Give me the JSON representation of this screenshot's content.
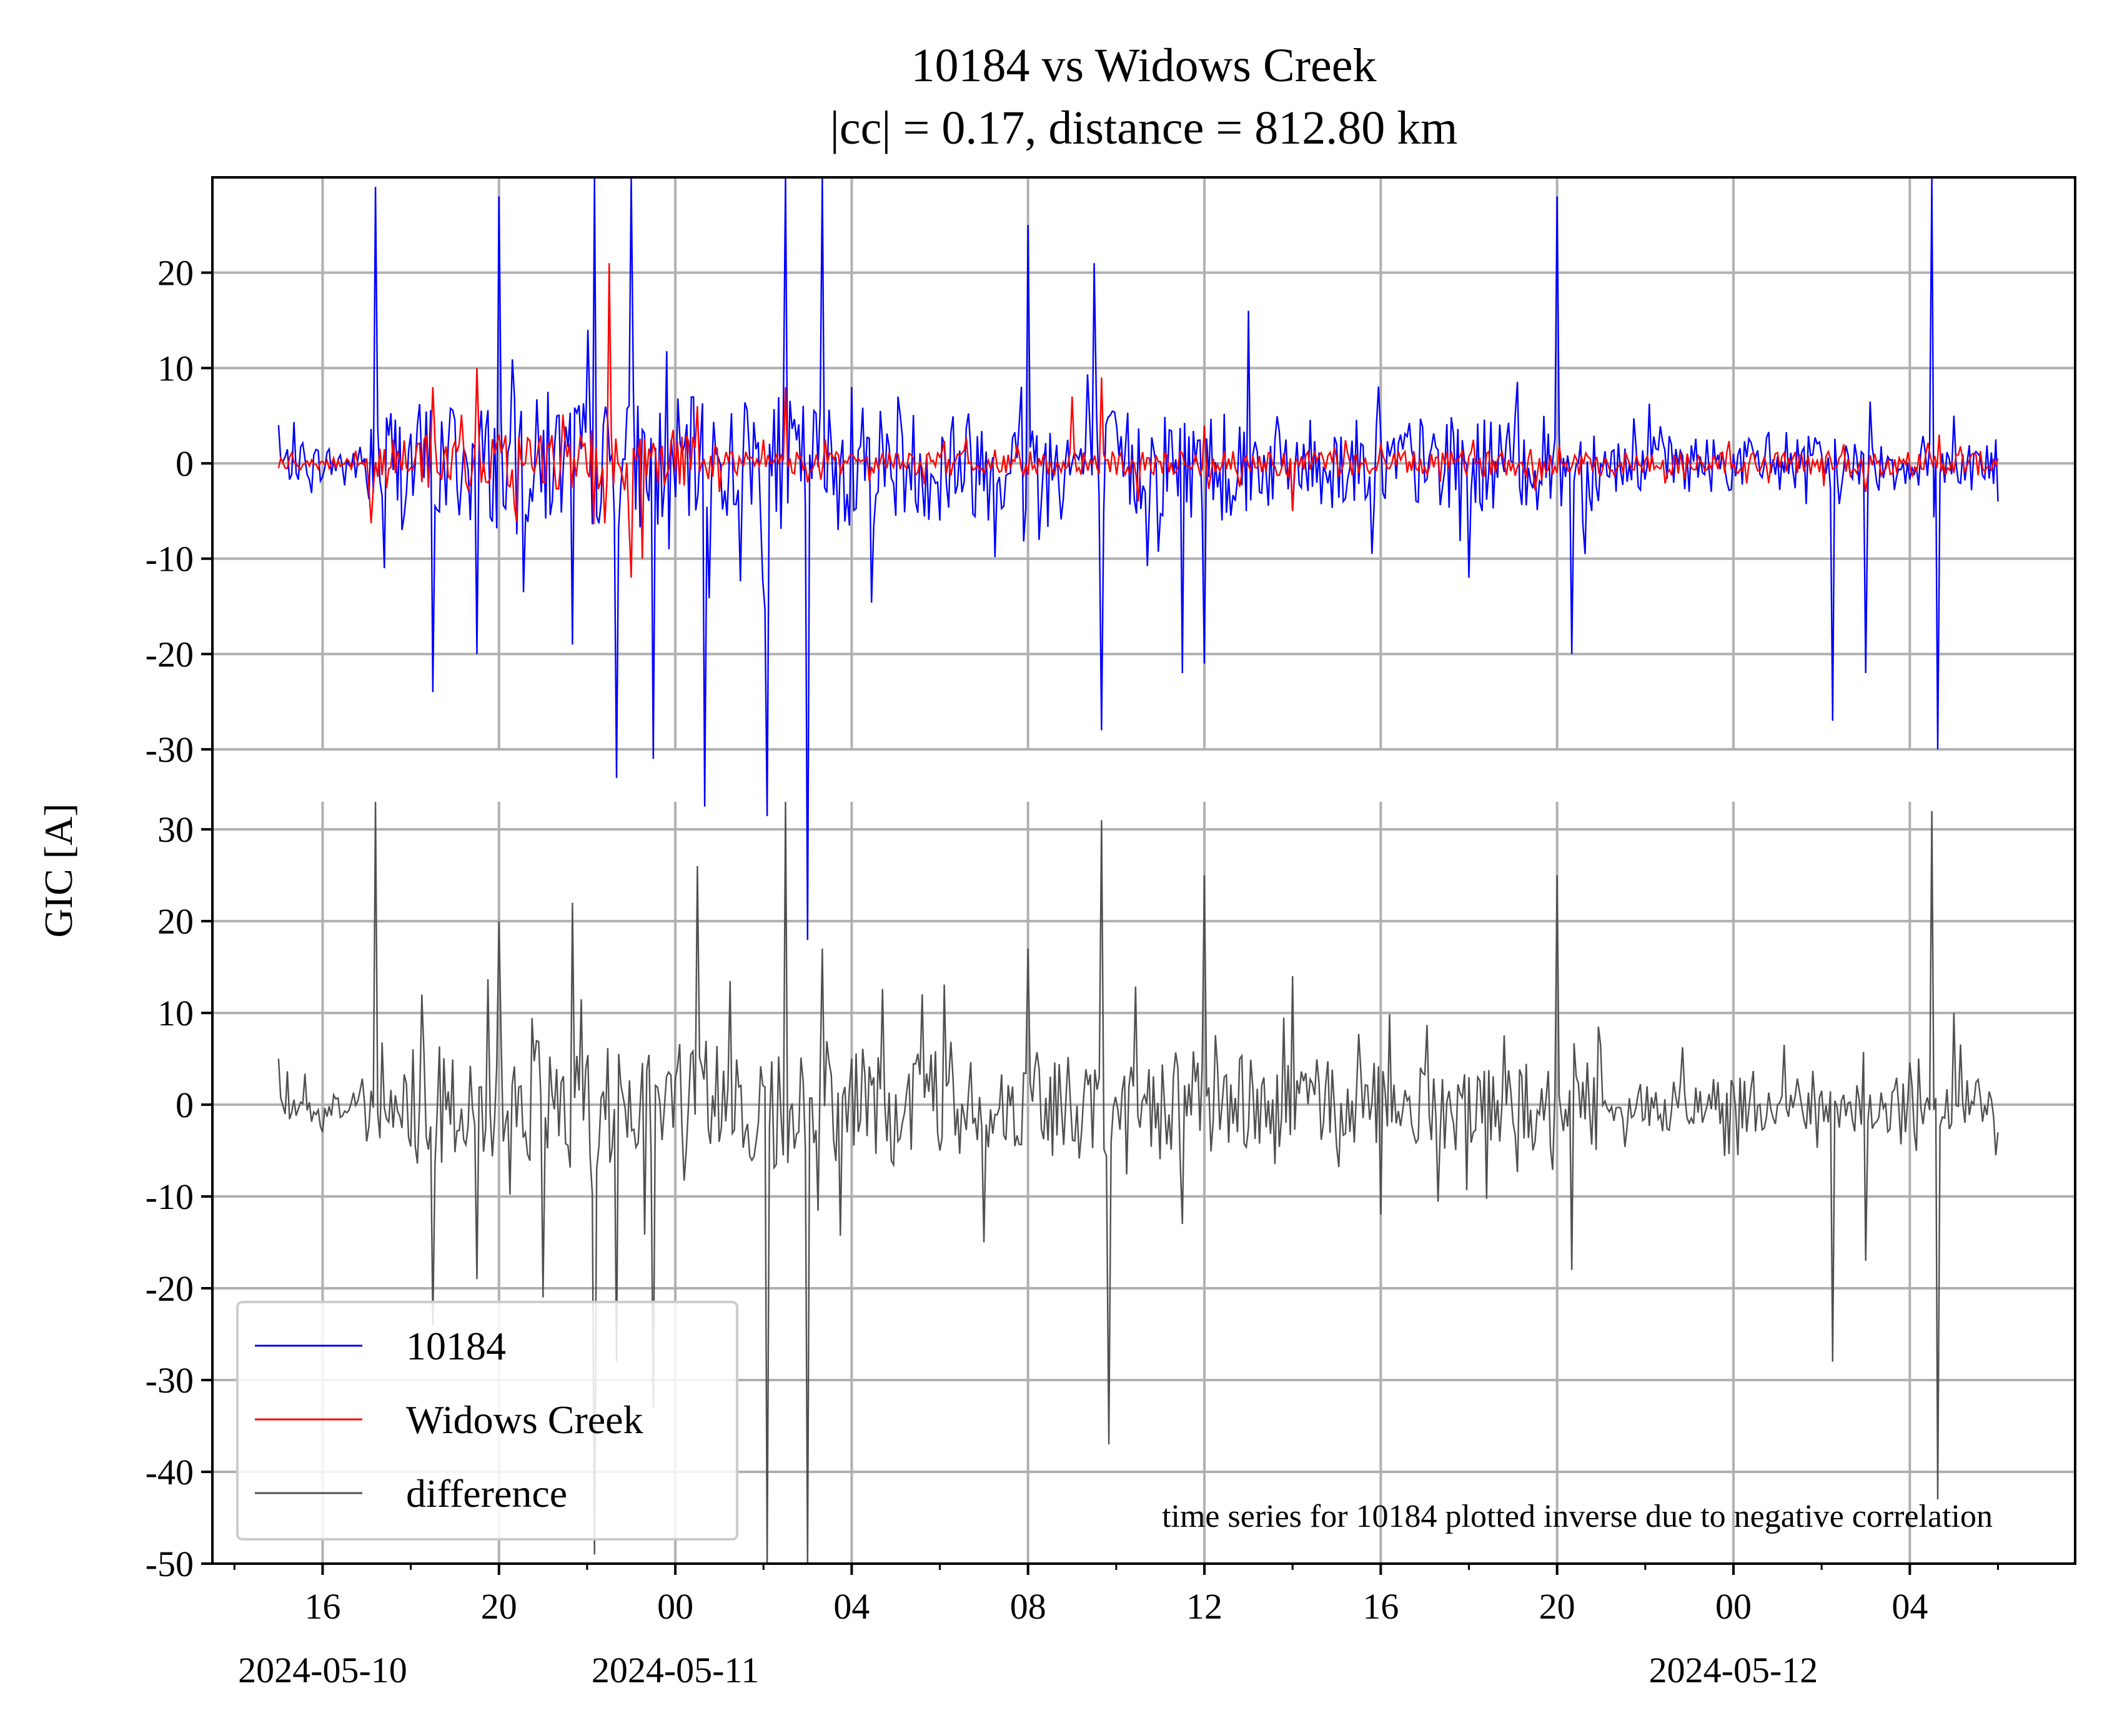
{
  "chart_data": {
    "type": "line",
    "title": "10184 vs Widows Creek",
    "subtitle": "|cc| = 0.17, distance = 812.80 km",
    "ylabel": "GIC [A]",
    "xlabel": "",
    "annotation": "time series for 10184 plotted inverse due to negative correlation",
    "grid": true,
    "legend_position": "lower-left",
    "x_start": "2024-05-10 15:00",
    "x_end": "2024-05-12 06:00",
    "x_range": [
      "2024-05-10 13:30",
      "2024-05-12 07:45"
    ],
    "x_ticks": [
      {
        "t": "2024-05-10 16:00",
        "label": "16",
        "date": "2024-05-10"
      },
      {
        "t": "2024-05-10 20:00",
        "label": "20",
        "date": ""
      },
      {
        "t": "2024-05-11 00:00",
        "label": "00",
        "date": "2024-05-11"
      },
      {
        "t": "2024-05-11 04:00",
        "label": "04",
        "date": ""
      },
      {
        "t": "2024-05-11 08:00",
        "label": "08",
        "date": ""
      },
      {
        "t": "2024-05-11 12:00",
        "label": "12",
        "date": ""
      },
      {
        "t": "2024-05-11 16:00",
        "label": "16",
        "date": ""
      },
      {
        "t": "2024-05-11 20:00",
        "label": "20",
        "date": ""
      },
      {
        "t": "2024-05-12 00:00",
        "label": "00",
        "date": "2024-05-12"
      },
      {
        "t": "2024-05-12 04:00",
        "label": "04",
        "date": ""
      }
    ],
    "upper_panel": {
      "ylim": [
        -30,
        30
      ],
      "yticks": [
        "20",
        "10",
        "0",
        "-10",
        "-20",
        "-30"
      ],
      "series": [
        {
          "name": "10184",
          "color": "#0000ff",
          "x": [
            "2024-05-10 15:00",
            "2024-05-10 17:00",
            "2024-05-10 17:12",
            "2024-05-10 17:24",
            "2024-05-10 18:30",
            "2024-05-10 19:30",
            "2024-05-10 20:00",
            "2024-05-10 21:40",
            "2024-05-10 22:10",
            "2024-05-10 22:40",
            "2024-05-10 23:00",
            "2024-05-10 23:30",
            "2024-05-11 00:40",
            "2024-05-11 02:05",
            "2024-05-11 02:30",
            "2024-05-11 03:00",
            "2024-05-11 03:20",
            "2024-05-11 04:00",
            "2024-05-11 06:00",
            "2024-05-11 08:00",
            "2024-05-11 09:30",
            "2024-05-11 09:40",
            "2024-05-11 11:30",
            "2024-05-11 12:00",
            "2024-05-11 13:00",
            "2024-05-11 14:00",
            "2024-05-11 16:00",
            "2024-05-11 18:00",
            "2024-05-11 20:00",
            "2024-05-11 20:20",
            "2024-05-12 00:00",
            "2024-05-12 02:15",
            "2024-05-12 03:00",
            "2024-05-12 04:30",
            "2024-05-12 04:38",
            "2024-05-12 05:00",
            "2024-05-12 06:00"
          ],
          "y": [
            4,
            -2,
            29,
            -11,
            -24,
            -20,
            28,
            -19,
            30,
            -33,
            30,
            -31,
            -36,
            -37,
            30,
            -50,
            30,
            8,
            -6,
            25,
            21,
            -28,
            -22,
            -21,
            16,
            -5,
            3,
            -12,
            28,
            -20,
            1,
            -27,
            -22,
            30,
            -30,
            5,
            -4
          ]
        },
        {
          "name": "Widows Creek",
          "color": "#ff0000",
          "x": [
            "2024-05-10 15:00",
            "2024-05-10 17:00",
            "2024-05-10 18:30",
            "2024-05-10 19:30",
            "2024-05-10 20:00",
            "2024-05-10 21:00",
            "2024-05-10 22:30",
            "2024-05-10 23:00",
            "2024-05-10 23:15",
            "2024-05-11 00:30",
            "2024-05-11 01:00",
            "2024-05-11 02:30",
            "2024-05-11 03:00",
            "2024-05-11 05:00",
            "2024-05-11 07:00",
            "2024-05-11 09:00",
            "2024-05-11 09:40",
            "2024-05-11 10:30",
            "2024-05-11 12:00",
            "2024-05-11 14:00",
            "2024-05-11 16:00",
            "2024-05-11 20:00",
            "2024-05-12 00:00",
            "2024-05-12 02:30",
            "2024-05-12 03:00",
            "2024-05-12 04:40",
            "2024-05-12 05:00",
            "2024-05-12 06:00"
          ],
          "y": [
            -0.5,
            0.5,
            8,
            10,
            3,
            -2,
            21,
            -12,
            -10,
            6,
            -3,
            8,
            -2,
            1,
            -1,
            7,
            9,
            -4,
            4,
            -5,
            2,
            -1,
            0,
            2,
            -3,
            3,
            -1,
            0.5
          ]
        }
      ]
    },
    "lower_panel": {
      "ylim": [
        -50,
        33
      ],
      "yticks": [
        "30",
        "20",
        "10",
        "0",
        "-10",
        "-20",
        "-30",
        "-40",
        "-50"
      ],
      "series": [
        {
          "name": "difference",
          "color": "#505050",
          "x": [
            "2024-05-10 15:00",
            "2024-05-10 16:00",
            "2024-05-10 17:00",
            "2024-05-10 17:12",
            "2024-05-10 18:30",
            "2024-05-10 19:30",
            "2024-05-10 20:00",
            "2024-05-10 21:00",
            "2024-05-10 21:40",
            "2024-05-10 22:10",
            "2024-05-10 22:40",
            "2024-05-10 23:30",
            "2024-05-11 00:30",
            "2024-05-11 02:05",
            "2024-05-11 02:30",
            "2024-05-11 03:00",
            "2024-05-11 03:20",
            "2024-05-11 04:00",
            "2024-05-11 06:00",
            "2024-05-11 07:00",
            "2024-05-11 08:00",
            "2024-05-11 09:40",
            "2024-05-11 09:50",
            "2024-05-11 11:30",
            "2024-05-11 12:00",
            "2024-05-11 14:00",
            "2024-05-11 16:00",
            "2024-05-11 18:00",
            "2024-05-11 20:00",
            "2024-05-11 20:20",
            "2024-05-12 00:00",
            "2024-05-12 02:15",
            "2024-05-12 03:00",
            "2024-05-12 04:30",
            "2024-05-12 04:38",
            "2024-05-12 05:00",
            "2024-05-12 06:00"
          ],
          "y": [
            5,
            -3,
            -4,
            33,
            -24,
            -19,
            20,
            -21,
            22,
            -49,
            -28,
            -33,
            26,
            -52,
            33,
            -50,
            17,
            5,
            -5,
            -15,
            17,
            31,
            -37,
            -13,
            25,
            14,
            -12,
            3,
            25,
            -18,
            2,
            -28,
            -17,
            32,
            -43,
            10,
            -3
          ]
        }
      ]
    },
    "legend": [
      {
        "name": "10184",
        "color": "#0000ff"
      },
      {
        "name": "Widows Creek",
        "color": "#ff0000"
      },
      {
        "name": "difference",
        "color": "#505050"
      }
    ]
  }
}
